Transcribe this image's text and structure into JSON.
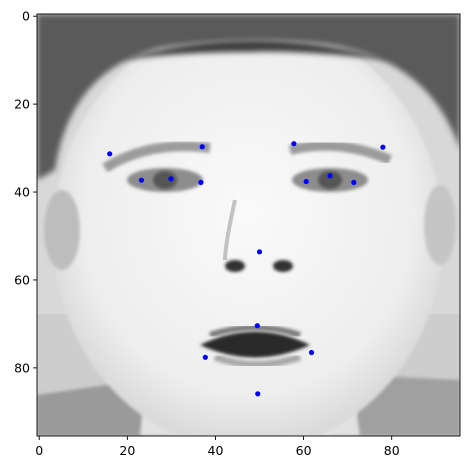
{
  "chart_data": {
    "type": "scatter",
    "title": "",
    "xlabel": "",
    "ylabel": "",
    "xlim": [
      -0.5,
      95.5
    ],
    "ylim": [
      95.5,
      -0.5
    ],
    "y_inverted": true,
    "grid": false,
    "legend": "none",
    "background": "grayscale face image (96x96 pixels) shown with imshow",
    "marker_color": "#0000ff",
    "x_ticks": [
      0,
      20,
      40,
      60,
      80
    ],
    "y_ticks": [
      0,
      20,
      40,
      60,
      80
    ],
    "x_tick_labels": [
      "0",
      "20",
      "40",
      "60",
      "80"
    ],
    "y_tick_labels": [
      "0",
      "20",
      "40",
      "60",
      "80"
    ],
    "points": [
      {
        "x": 16.0,
        "y": 31.3
      },
      {
        "x": 23.2,
        "y": 37.3
      },
      {
        "x": 29.9,
        "y": 37.0
      },
      {
        "x": 37.0,
        "y": 29.7
      },
      {
        "x": 36.7,
        "y": 37.8
      },
      {
        "x": 57.8,
        "y": 29.0
      },
      {
        "x": 60.6,
        "y": 37.6
      },
      {
        "x": 66.0,
        "y": 36.3
      },
      {
        "x": 71.4,
        "y": 37.8
      },
      {
        "x": 78.0,
        "y": 29.8
      },
      {
        "x": 50.0,
        "y": 53.6
      },
      {
        "x": 49.5,
        "y": 70.4
      },
      {
        "x": 37.7,
        "y": 77.6
      },
      {
        "x": 61.8,
        "y": 76.5
      },
      {
        "x": 49.6,
        "y": 85.9
      }
    ]
  }
}
